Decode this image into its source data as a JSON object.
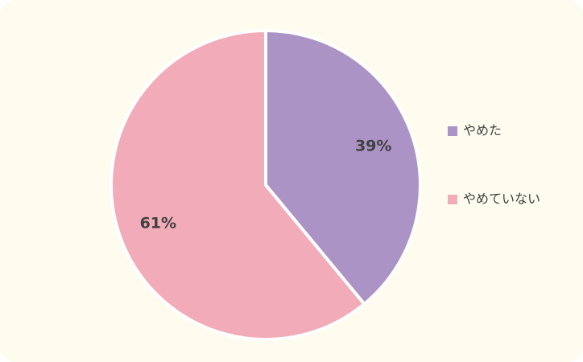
{
  "chart_data": {
    "type": "pie",
    "categories": [
      "やめた",
      "やめていない"
    ],
    "values": [
      39,
      61
    ],
    "value_labels": [
      "39%",
      "61%"
    ],
    "colors": [
      "#ab93c5",
      "#f2abb9"
    ],
    "legend": "right"
  }
}
